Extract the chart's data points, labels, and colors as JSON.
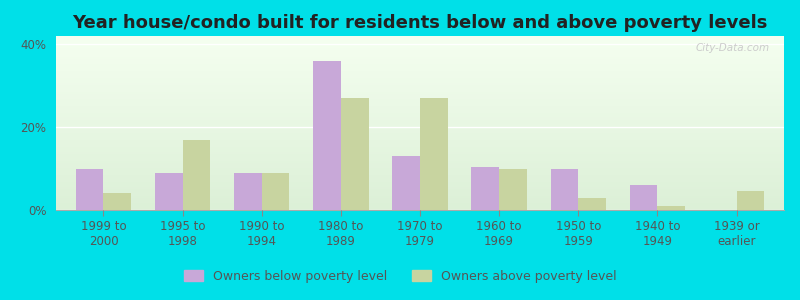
{
  "categories": [
    "1999 to\n2000",
    "1995 to\n1998",
    "1990 to\n1994",
    "1980 to\n1989",
    "1970 to\n1979",
    "1960 to\n1969",
    "1950 to\n1959",
    "1940 to\n1949",
    "1939 or\nearlier"
  ],
  "below_poverty": [
    10.0,
    9.0,
    9.0,
    36.0,
    13.0,
    10.5,
    10.0,
    6.0,
    0.0
  ],
  "above_poverty": [
    4.0,
    17.0,
    9.0,
    27.0,
    27.0,
    10.0,
    3.0,
    1.0,
    4.5
  ],
  "below_color": "#c8a8d8",
  "above_color": "#c8d4a0",
  "title": "Year house/condo built for residents below and above poverty levels",
  "title_fontsize": 13,
  "ylabel_ticks": [
    "0%",
    "20%",
    "40%"
  ],
  "ytick_vals": [
    0,
    20,
    40
  ],
  "ylim": [
    0,
    42
  ],
  "outer_bg": "#00e0e8",
  "legend_below": "Owners below poverty level",
  "legend_above": "Owners above poverty level",
  "bar_width": 0.35,
  "tick_fontsize": 8.5,
  "legend_fontsize": 9
}
